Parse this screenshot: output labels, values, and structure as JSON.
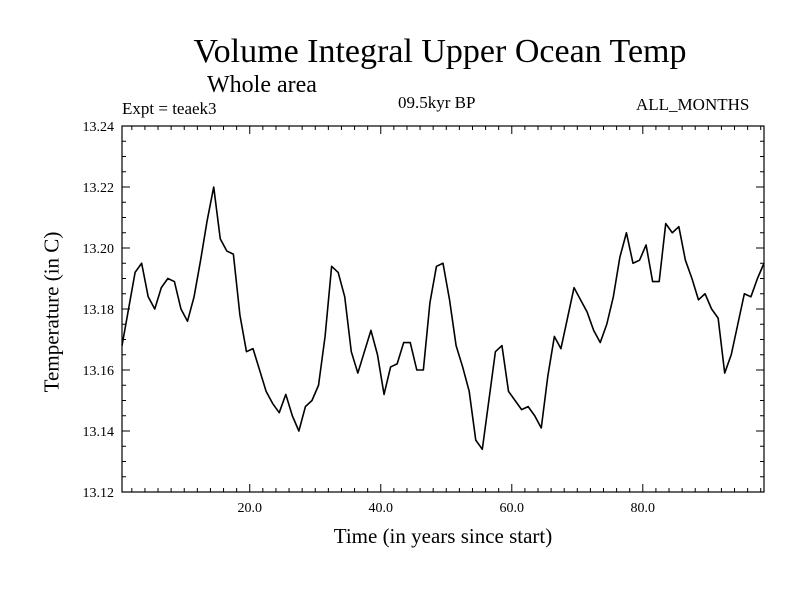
{
  "chart_data": {
    "type": "line",
    "title": "Volume Integral Upper Ocean Temp",
    "subtitle": "Whole area",
    "left_label": "Expt = teaek3",
    "center_label": "09.5kyr BP",
    "right_label": "ALL_MONTHS",
    "xlabel": "Time (in years since start)",
    "ylabel": "Temperature (in C)",
    "xlim": [
      0.5,
      98.5
    ],
    "ylim": [
      13.12,
      13.24
    ],
    "xticks": [
      20,
      40,
      60,
      80
    ],
    "xtick_labels": [
      "20.0",
      "40.0",
      "60.0",
      "80.0"
    ],
    "yticks": [
      13.12,
      13.14,
      13.16,
      13.18,
      13.2,
      13.22,
      13.24
    ],
    "ytick_labels": [
      "13.12",
      "13.14",
      "13.16",
      "13.18",
      "13.20",
      "13.22",
      "13.24"
    ],
    "grid": false,
    "series": [
      {
        "name": "Volume Integral Upper Ocean Temp",
        "x": [
          0.5,
          1.5,
          2.5,
          3.5,
          4.5,
          5.5,
          6.5,
          7.5,
          8.5,
          9.5,
          10.5,
          11.5,
          12.5,
          13.5,
          14.5,
          15.5,
          16.5,
          17.5,
          18.5,
          19.5,
          20.5,
          21.5,
          22.5,
          23.5,
          24.5,
          25.5,
          26.5,
          27.5,
          28.5,
          29.5,
          30.5,
          31.5,
          32.5,
          33.5,
          34.5,
          35.5,
          36.5,
          37.5,
          38.5,
          39.5,
          40.5,
          41.5,
          42.5,
          43.5,
          44.5,
          45.5,
          46.5,
          47.5,
          48.5,
          49.5,
          50.5,
          51.5,
          52.5,
          53.5,
          54.5,
          55.5,
          56.5,
          57.5,
          58.5,
          59.5,
          60.5,
          61.5,
          62.5,
          63.5,
          64.5,
          65.5,
          66.5,
          67.5,
          68.5,
          69.5,
          70.5,
          71.5,
          72.5,
          73.5,
          74.5,
          75.5,
          76.5,
          77.5,
          78.5,
          79.5,
          80.5,
          81.5,
          82.5,
          83.5,
          84.5,
          85.5,
          86.5,
          87.5,
          88.5,
          89.5,
          90.5,
          91.5,
          92.5,
          93.5,
          94.5,
          95.5,
          96.5,
          97.5,
          98.5
        ],
        "values": [
          13.168,
          13.18,
          13.192,
          13.195,
          13.184,
          13.18,
          13.187,
          13.19,
          13.189,
          13.18,
          13.176,
          13.184,
          13.196,
          13.209,
          13.22,
          13.203,
          13.199,
          13.198,
          13.178,
          13.166,
          13.167,
          13.16,
          13.153,
          13.149,
          13.146,
          13.152,
          13.145,
          13.14,
          13.148,
          13.15,
          13.155,
          13.171,
          13.194,
          13.192,
          13.184,
          13.166,
          13.159,
          13.166,
          13.173,
          13.165,
          13.152,
          13.161,
          13.162,
          13.169,
          13.169,
          13.16,
          13.16,
          13.182,
          13.194,
          13.195,
          13.183,
          13.168,
          13.161,
          13.153,
          13.137,
          13.134,
          13.15,
          13.166,
          13.168,
          13.153,
          13.15,
          13.147,
          13.148,
          13.145,
          13.141,
          13.158,
          13.171,
          13.167,
          13.177,
          13.187,
          13.183,
          13.179,
          13.173,
          13.169,
          13.175,
          13.184,
          13.197,
          13.205,
          13.195,
          13.196,
          13.201,
          13.189,
          13.189,
          13.208,
          13.205,
          13.207,
          13.196,
          13.19,
          13.183,
          13.185,
          13.18,
          13.177,
          13.159,
          13.165,
          13.175,
          13.185,
          13.184,
          13.19,
          13.195
        ]
      }
    ]
  }
}
